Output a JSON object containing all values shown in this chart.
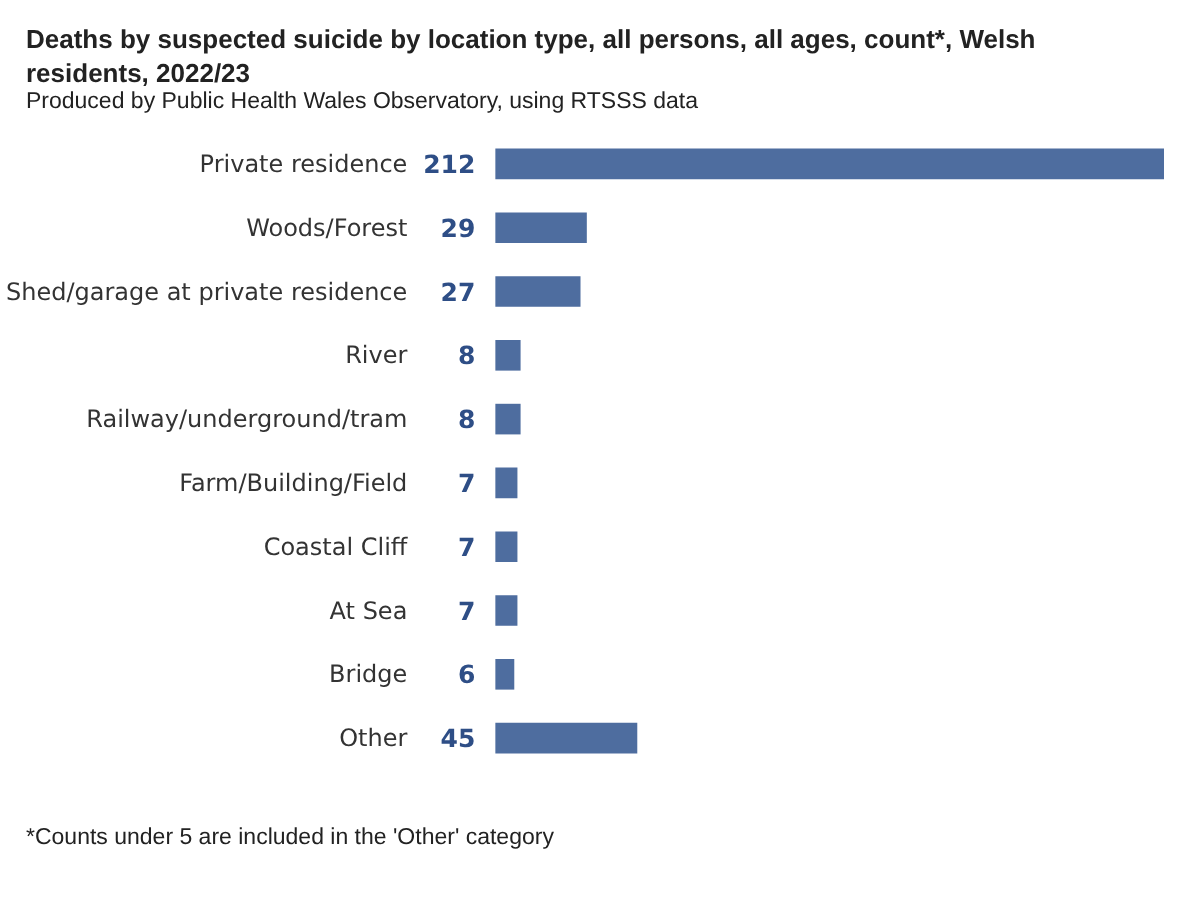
{
  "chart_data": {
    "type": "bar",
    "orientation": "horizontal",
    "title": "Deaths by suspected suicide by location type, all persons, all ages, count*, Welsh residents, 2022/23",
    "subtitle": "Produced by Public Health Wales Observatory, using RTSSS data",
    "categories": [
      "Private residence",
      "Woods/Forest",
      "Shed/garage at private residence",
      "River",
      "Railway/underground/tram",
      "Farm/Building/Field",
      "Coastal Cliff",
      "At Sea",
      "Bridge",
      "Other"
    ],
    "values": [
      212,
      29,
      27,
      8,
      8,
      7,
      7,
      7,
      6,
      45
    ],
    "color": "#4e6d9f",
    "data_labels": true,
    "tick_labels": "y",
    "annotations": [
      "*Counts under 5 are included in the 'Other' category"
    ]
  }
}
